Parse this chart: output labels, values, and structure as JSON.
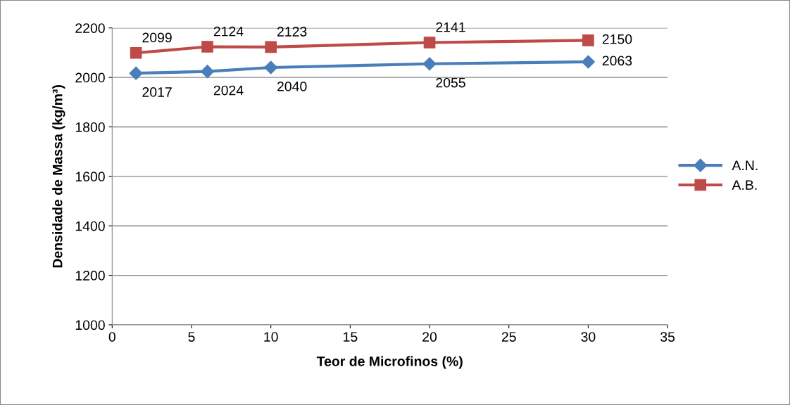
{
  "chart_data": {
    "type": "line",
    "xlabel": "Teor de Microfinos (%)",
    "ylabel": "Densidade de Massa (kg/m³)",
    "x": [
      1.5,
      6,
      10,
      20,
      30
    ],
    "series": [
      {
        "name": "A.N.",
        "color": "#4a7ebb",
        "marker": "diamond",
        "values": [
          2017,
          2024,
          2040,
          2055,
          2063
        ]
      },
      {
        "name": "A.B.",
        "color": "#be4b48",
        "marker": "square",
        "values": [
          2099,
          2124,
          2123,
          2141,
          2150
        ]
      }
    ],
    "xlim": [
      0,
      35
    ],
    "xticks": [
      0,
      5,
      10,
      15,
      20,
      25,
      30,
      35
    ],
    "ylim": [
      1000,
      2200
    ],
    "yticks": [
      1000,
      1200,
      1400,
      1600,
      1800,
      2000,
      2200
    ],
    "grid": "y",
    "legend": "right",
    "data_labels": true
  }
}
